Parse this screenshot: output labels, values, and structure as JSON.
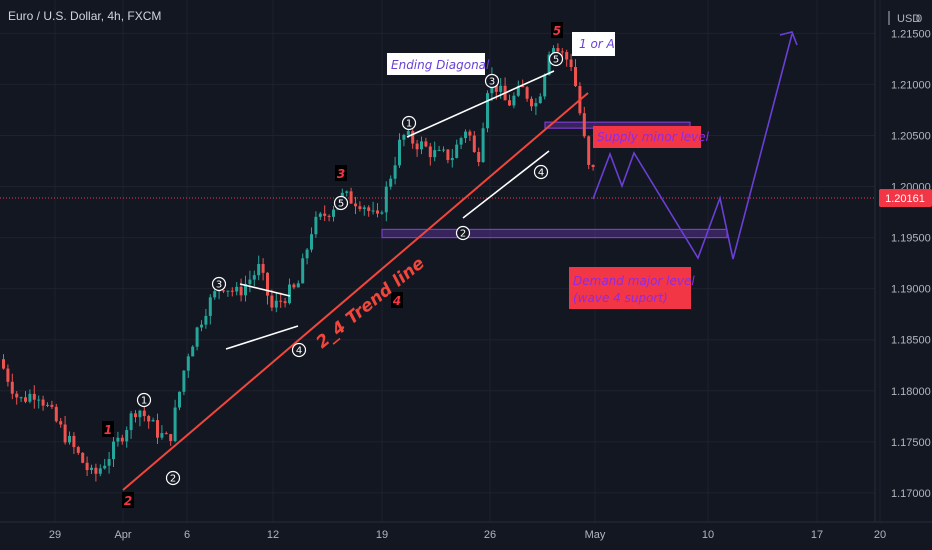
{
  "header": {
    "symbol_title": "Euro / U.S. Dollar, 4h, FXCM",
    "currency_label": "USD",
    "currency_menu": "0"
  },
  "price_axis": {
    "ticks": [
      "1.21500",
      "1.21000",
      "1.20500",
      "1.20000",
      "1.19500",
      "1.19000",
      "1.18500",
      "1.18000",
      "1.17500",
      "1.17000"
    ],
    "last_price": "1.20161"
  },
  "time_axis": {
    "ticks": [
      "29",
      "Apr",
      "6",
      "12",
      "19",
      "26",
      "May",
      "10",
      "17",
      "20"
    ]
  },
  "annotations": {
    "ending_diagonal": "Ending Diagonal",
    "one_or_a": "1 or A",
    "trend_line": "2_4 Trend line",
    "supply": "Supply minor level",
    "demand_line1": "Demand major level",
    "demand_line2": "(wave 4 suport)",
    "major_waves": [
      "1",
      "2",
      "3",
      "4",
      "5"
    ],
    "minor_waves": [
      "1",
      "2",
      "3",
      "4",
      "5"
    ]
  },
  "colors": {
    "background": "#131722",
    "up": "#26a69a",
    "down": "#ef5350",
    "trendline": "#f0463c",
    "projection": "#6a3fd6",
    "zone": "#7a3cc9",
    "label_red": "#f23645",
    "last_price_bg": "#f23645"
  },
  "chart_data": {
    "type": "candlestick",
    "title": "Euro / U.S. Dollar, 4h, FXCM",
    "ylim": [
      1.1685,
      1.2202
    ],
    "last_price": 1.20161,
    "path_points": [
      [
        "2021-03-25",
        1.1835
      ],
      [
        "2021-03-26",
        1.179
      ],
      [
        "2021-03-27",
        1.18
      ],
      [
        "2021-03-29",
        1.1765
      ],
      [
        "2021-03-31",
        1.1715
      ],
      [
        "2021-04-01",
        1.1745
      ],
      [
        "2021-04-02",
        1.1785
      ],
      [
        "2021-04-04",
        1.176
      ],
      [
        "2021-04-05",
        1.175
      ],
      [
        "2021-04-06",
        1.1835
      ],
      [
        "2021-04-07",
        1.188
      ],
      [
        "2021-04-08",
        1.1905
      ],
      [
        "2021-04-09",
        1.1895
      ],
      [
        "2021-04-10",
        1.192
      ],
      [
        "2021-04-11",
        1.188
      ],
      [
        "2021-04-12",
        1.1895
      ],
      [
        "2021-04-13",
        1.19
      ],
      [
        "2021-04-14",
        1.196
      ],
      [
        "2021-04-15",
        1.1975
      ],
      [
        "2021-04-16",
        1.199
      ],
      [
        "2021-04-17",
        1.1985
      ],
      [
        "2021-04-18",
        1.1965
      ],
      [
        "2021-04-19",
        1.205
      ],
      [
        "2021-04-20",
        1.204
      ],
      [
        "2021-04-21",
        1.203
      ],
      [
        "2021-04-22",
        1.203
      ],
      [
        "2021-04-23",
        1.206
      ],
      [
        "2021-04-24",
        1.202
      ],
      [
        "2021-04-25",
        1.211
      ],
      [
        "2021-04-26",
        1.208
      ],
      [
        "2021-04-27",
        1.2095
      ],
      [
        "2021-04-28",
        1.208
      ],
      [
        "2021-04-29",
        1.214
      ],
      [
        "2021-04-30",
        1.212
      ],
      [
        "2021-05-01",
        1.2015
      ]
    ],
    "projection": [
      [
        "2021-04-30",
        1.2015
      ],
      [
        "2021-05-02",
        1.206
      ],
      [
        "2021-05-03",
        1.2035
      ],
      [
        "2021-05-04",
        1.206
      ],
      [
        "2021-05-08",
        1.1955
      ],
      [
        "2021-05-10",
        1.2015
      ],
      [
        "2021-05-11",
        1.1955
      ],
      [
        "2021-05-15",
        1.2185
      ]
    ],
    "trend_line": [
      [
        "2021-04-01",
        1.172
      ],
      [
        "2021-05-01",
        1.2125
      ]
    ],
    "supply_zone": {
      "from": "2021-05-01",
      "to": "2021-05-07",
      "low": 1.2058,
      "high": 1.2063
    },
    "demand_zone": {
      "from": "2021-04-19",
      "to": "2021-05-11",
      "low": 1.195,
      "high": 1.1958
    }
  }
}
